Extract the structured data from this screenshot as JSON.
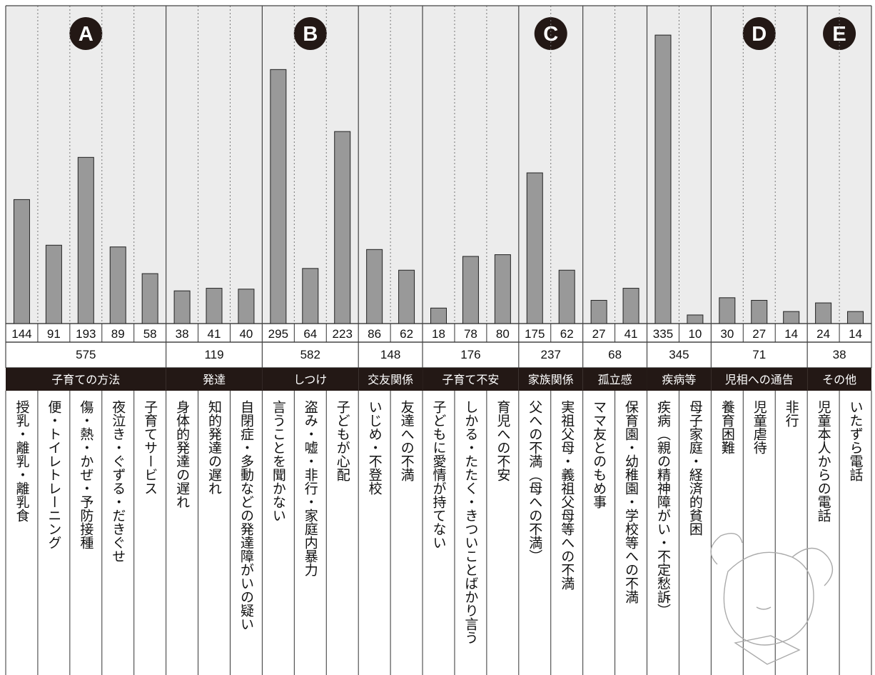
{
  "chart_data": {
    "type": "bar",
    "ylim": [
      0,
      355
    ],
    "badges": [
      "A",
      "B",
      "C",
      "D",
      "E"
    ],
    "groups": [
      {
        "badge": "A",
        "name": "子育ての方法",
        "total": 575,
        "items": [
          {
            "label": "授乳・離乳・離乳食",
            "value": 144
          },
          {
            "label": "便・トイレトレーニング",
            "value": 91
          },
          {
            "label": "傷・熱・かぜ・予防接種",
            "value": 193
          },
          {
            "label": "夜泣き・ぐずる・だきぐせ",
            "value": 89
          },
          {
            "label": "子育てサービス",
            "value": 58
          }
        ]
      },
      {
        "badge": "",
        "name": "発達",
        "total": 119,
        "items": [
          {
            "label": "身体的発達の遅れ",
            "value": 38
          },
          {
            "label": "知的発達の遅れ",
            "value": 41
          },
          {
            "label": "自閉症・多動などの発達障がいの疑い",
            "value": 40
          }
        ]
      },
      {
        "badge": "B",
        "name": "しつけ",
        "total": 582,
        "items": [
          {
            "label": "言うことを聞かない",
            "value": 295
          },
          {
            "label": "盗み・嘘・非行・家庭内暴力",
            "value": 64
          },
          {
            "label": "子どもが心配",
            "value": 223
          }
        ]
      },
      {
        "badge": "",
        "name": "交友関係",
        "total": 148,
        "items": [
          {
            "label": "いじめ・不登校",
            "value": 86
          },
          {
            "label": "友達への不満",
            "value": 62
          }
        ]
      },
      {
        "badge": "",
        "name": "子育て不安",
        "total": 176,
        "items": [
          {
            "label": "子どもに愛情が持てない",
            "value": 18
          },
          {
            "label": "しかる・たたく・きついことばかり言う",
            "value": 78
          },
          {
            "label": "育児への不安",
            "value": 80
          }
        ]
      },
      {
        "badge": "C",
        "name": "家族関係",
        "total": 237,
        "items": [
          {
            "label": "父への不満（母への不満）",
            "value": 175
          },
          {
            "label": "実祖父母・義祖父母等への不満",
            "value": 62
          }
        ]
      },
      {
        "badge": "",
        "name": "孤立感",
        "total": 68,
        "items": [
          {
            "label": "ママ友とのもめ事",
            "value": 27
          },
          {
            "label": "保育園・幼稚園・学校等への不満",
            "value": 41
          }
        ]
      },
      {
        "badge": "",
        "name": "疾病等",
        "total": 345,
        "items": [
          {
            "label": "疾病（親の精神障がい・不定愁訴）",
            "value": 335
          },
          {
            "label": "母子家庭・経済的貧困",
            "value": 10
          }
        ]
      },
      {
        "badge": "D",
        "name": "児相への通告",
        "total": 71,
        "items": [
          {
            "label": "養育困難",
            "value": 30
          },
          {
            "label": "児童虐待",
            "value": 27
          },
          {
            "label": "非行",
            "value": 14
          }
        ]
      },
      {
        "badge": "E",
        "name": "その他",
        "total": 38,
        "items": [
          {
            "label": "児童本人からの電話",
            "value": 24
          },
          {
            "label": "いたずら電話",
            "value": 14
          }
        ]
      }
    ]
  },
  "colors": {
    "panel_bg": "#ececec",
    "bar": "#999999",
    "header_band": "#231815",
    "badge": "#231815"
  }
}
